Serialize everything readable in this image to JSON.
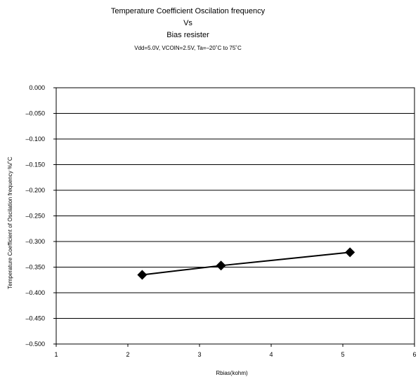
{
  "chart_data": {
    "type": "line",
    "title": "Temperature Coefficient Oscilation frequency",
    "title_line2": "Vs",
    "title_line3": "Bias resister",
    "subtitle": "Vdd=5.0V, VCOIN=2.5V, Ta=–20˚C to 75˚C",
    "xlabel": "Rbias(kohm)",
    "ylabel": "Temperature Coefficient of  Oscilation frequency %/˚C",
    "xlim": [
      1,
      6
    ],
    "ylim": [
      -0.5,
      0.0
    ],
    "x_ticks": [
      1,
      2,
      3,
      4,
      5,
      6
    ],
    "y_ticks": [
      0.0,
      -0.05,
      -0.1,
      -0.15,
      -0.2,
      -0.25,
      -0.3,
      -0.35,
      -0.4,
      -0.45,
      -0.5
    ],
    "y_tick_labels": [
      "0.000",
      "–0.050",
      "–0.100",
      "–0.150",
      "–0.200",
      "–0.250",
      "–0.300",
      "–0.350",
      "–0.400",
      "–0.450",
      "–0.500"
    ],
    "grid": "horizontal",
    "marker": "diamond",
    "series_color": "#000000",
    "series": [
      {
        "x": [
          2.2,
          3.3,
          5.1
        ],
        "y": [
          -0.365,
          -0.347,
          -0.321
        ]
      }
    ]
  }
}
